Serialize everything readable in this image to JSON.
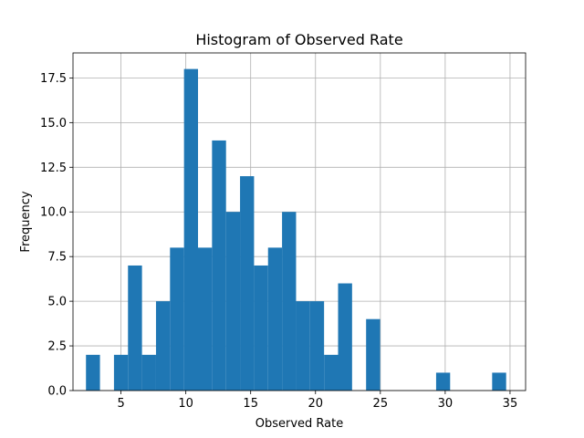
{
  "chart_data": {
    "type": "bar",
    "title": "Histogram of Observed Rate",
    "xlabel": "Observed Rate",
    "ylabel": "Frequency",
    "grid": true,
    "legend": "none",
    "bar_color": "#1f77b4",
    "xlim": [
      1.3,
      36.2
    ],
    "ylim": [
      0,
      18.9
    ],
    "xticks": [
      {
        "value": 5,
        "label": "5"
      },
      {
        "value": 10,
        "label": "10"
      },
      {
        "value": 15,
        "label": "15"
      },
      {
        "value": 20,
        "label": "20"
      },
      {
        "value": 25,
        "label": "25"
      },
      {
        "value": 30,
        "label": "30"
      },
      {
        "value": 35,
        "label": "35"
      }
    ],
    "yticks": [
      {
        "value": 0,
        "label": "0.0"
      },
      {
        "value": 2.5,
        "label": "2.5"
      },
      {
        "value": 5,
        "label": "5.0"
      },
      {
        "value": 7.5,
        "label": "7.5"
      },
      {
        "value": 10,
        "label": "10.0"
      },
      {
        "value": 12.5,
        "label": "12.5"
      },
      {
        "value": 15,
        "label": "15.0"
      },
      {
        "value": 17.5,
        "label": "17.5"
      }
    ],
    "bin_start": 2.3,
    "bin_width": 1.08,
    "counts": [
      2,
      0,
      2,
      7,
      2,
      5,
      8,
      18,
      8,
      14,
      10,
      12,
      7,
      8,
      10,
      5,
      5,
      2,
      6,
      0,
      4,
      0,
      0,
      0,
      0,
      1,
      0,
      0,
      0,
      1
    ]
  }
}
